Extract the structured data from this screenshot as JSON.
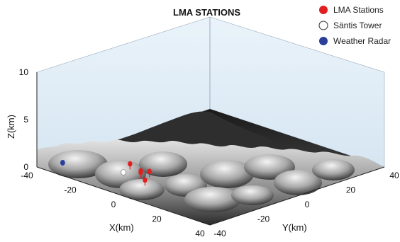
{
  "chart_data": {
    "type": "scatter",
    "subtype": "3d-terrain",
    "title": "LMA STATIONS",
    "xlabel": "X(km)",
    "ylabel": "Y(km)",
    "zlabel": "Z(km)",
    "xlim": [
      -40,
      40
    ],
    "ylim": [
      -40,
      40
    ],
    "zlim": [
      0,
      10
    ],
    "x_ticks": [
      "-40",
      "-20",
      "0",
      "20",
      "40"
    ],
    "y_ticks": [
      "-40",
      "-20",
      "0",
      "20",
      "40"
    ],
    "z_ticks": [
      "0",
      "5",
      "10"
    ],
    "legend_position": "top-right",
    "grid": false,
    "series": [
      {
        "name": "LMA Stations",
        "color": "#e02020",
        "points": [
          {
            "x": -5,
            "y": 8,
            "z": 2.4
          },
          {
            "x": 3,
            "y": 5,
            "z": 2.5
          },
          {
            "x": 6,
            "y": 2,
            "z": 2.8
          },
          {
            "x": 8,
            "y": 4,
            "z": 2.9
          },
          {
            "x": 11,
            "y": -1,
            "z": 2.6
          }
        ]
      },
      {
        "name": "Säntis Tower",
        "color": "#ffffff",
        "points": [
          {
            "x": 0,
            "y": 0,
            "z": 2.5
          }
        ]
      },
      {
        "name": "Weather Radar",
        "color": "#2a3f9a",
        "points": [
          {
            "x": -18,
            "y": -10,
            "z": 2.9
          }
        ]
      }
    ]
  }
}
